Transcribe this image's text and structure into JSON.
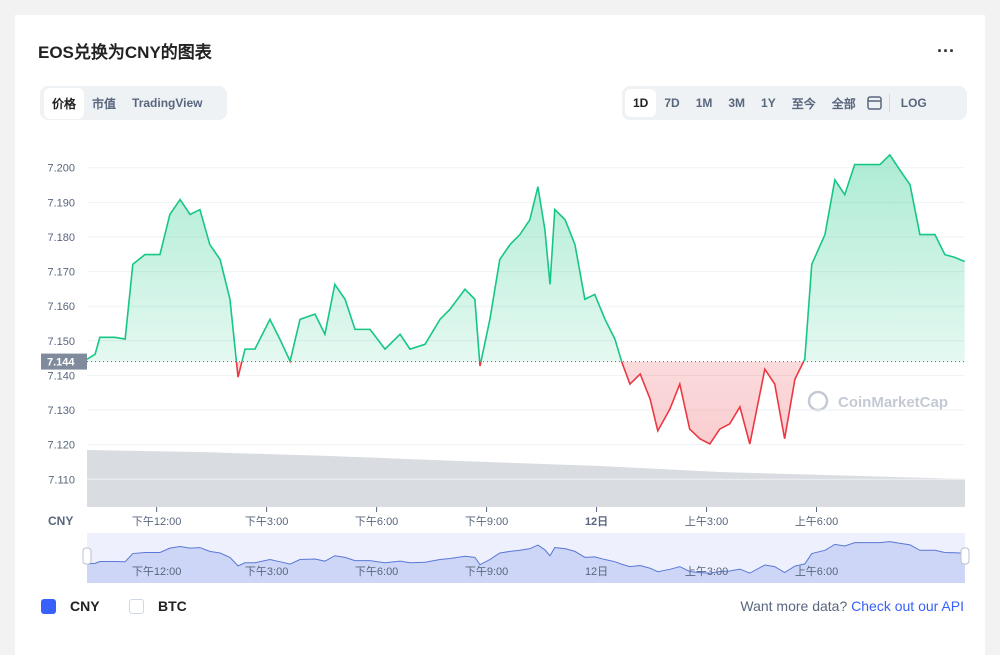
{
  "header": {
    "title": "EOS兑换为CNY的图表",
    "menu": "...",
    "tabs": [
      "价格",
      "市值",
      "TradingView"
    ],
    "ranges": [
      "1D",
      "7D",
      "1M",
      "3M",
      "1Y",
      "至今",
      "全部",
      "LOG"
    ]
  },
  "chart_data": {
    "type": "line",
    "y_label": "CNY",
    "watermark": "CoinMarketCap",
    "x": [
      10.1,
      10.32,
      10.45,
      10.86,
      11.14,
      11.35,
      11.68,
      12.09,
      12.36,
      12.64,
      12.91,
      13.18,
      13.45,
      13.73,
      14.0,
      14.22,
      14.41,
      14.68,
      15.09,
      15.36,
      15.64,
      15.91,
      16.32,
      16.59,
      16.86,
      17.14,
      17.41,
      17.82,
      18.23,
      18.64,
      18.91,
      19.32,
      19.73,
      20.0,
      20.41,
      20.68,
      20.82,
      21.09,
      21.36,
      21.64,
      21.91,
      22.18,
      22.4,
      22.59,
      22.73,
      22.86,
      23.14,
      23.41,
      23.68,
      23.95,
      24.23,
      24.5,
      24.69,
      24.91,
      25.19,
      25.46,
      25.67,
      26.0,
      26.27,
      26.54,
      26.82,
      27.09,
      27.36,
      27.63,
      27.91,
      28.18,
      28.59,
      28.86,
      29.13,
      29.41,
      29.68,
      29.87,
      30.23,
      30.5,
      30.77,
      31.04,
      31.45,
      31.73,
      32.0,
      32.27,
      32.55,
      32.82,
      33.23,
      33.5,
      33.77,
      34.04
    ],
    "series": [
      {
        "name": "CNY",
        "color": "#16c784",
        "below_color": "#ea3943",
        "values": [
          7.1447,
          7.1461,
          7.151,
          7.151,
          7.1505,
          7.1721,
          7.1749,
          7.1749,
          7.1865,
          7.1908,
          7.1865,
          7.1879,
          7.1778,
          7.1735,
          7.162,
          7.1395,
          7.1476,
          7.1476,
          7.1562,
          7.1505,
          7.1441,
          7.1562,
          7.1577,
          7.1519,
          7.1663,
          7.162,
          7.1533,
          7.1533,
          7.1476,
          7.1519,
          7.1476,
          7.149,
          7.1562,
          7.1591,
          7.1649,
          7.162,
          7.1427,
          7.1562,
          7.1735,
          7.1778,
          7.1807,
          7.185,
          7.1945,
          7.1821,
          7.1663,
          7.1879,
          7.185,
          7.1778,
          7.162,
          7.1634,
          7.1562,
          7.1505,
          7.1438,
          7.1375,
          7.1404,
          7.1332,
          7.124,
          7.1303,
          7.1375,
          7.1245,
          7.1217,
          7.1202,
          7.1245,
          7.126,
          7.1309,
          7.1202,
          7.1418,
          7.1375,
          7.1217,
          7.1389,
          7.1447,
          7.1721,
          7.1807,
          7.1965,
          7.1922,
          7.2009,
          7.2009,
          7.2009,
          7.2037,
          7.1994,
          7.1951,
          7.1807,
          7.1807,
          7.1749,
          7.1741,
          7.1729
        ]
      }
    ],
    "baseline": {
      "value": 7.144,
      "label": "7.144"
    },
    "xlim": [
      10.1,
      34.05
    ],
    "xticks": [
      {
        "value": 12,
        "label": "下午12:00"
      },
      {
        "value": 15,
        "label": "下午3:00"
      },
      {
        "value": 18,
        "label": "下午6:00"
      },
      {
        "value": 21,
        "label": "下午9:00"
      },
      {
        "value": 24,
        "label": "12日"
      },
      {
        "value": 27,
        "label": "上午3:00"
      },
      {
        "value": 30,
        "label": "上午6:00"
      }
    ],
    "ylim": [
      7.102,
      7.208
    ],
    "yticks": [
      {
        "value": 7.11,
        "label": "7.110"
      },
      {
        "value": 7.12,
        "label": "7.120"
      },
      {
        "value": 7.13,
        "label": "7.130"
      },
      {
        "value": 7.14,
        "label": "7.140"
      },
      {
        "value": 7.15,
        "label": "7.150"
      },
      {
        "value": 7.16,
        "label": "7.160"
      },
      {
        "value": 7.17,
        "label": "7.170"
      },
      {
        "value": 7.18,
        "label": "7.180"
      },
      {
        "value": 7.19,
        "label": "7.190"
      },
      {
        "value": 7.2,
        "label": "7.200"
      }
    ],
    "grid": true
  },
  "footer": {
    "legend": [
      "CNY",
      "BTC"
    ],
    "prompt": "Want more data?",
    "link": "Check out our API"
  }
}
